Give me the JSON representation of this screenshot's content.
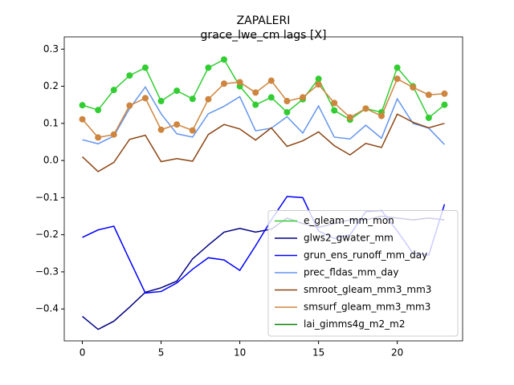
{
  "chart_data": {
    "type": "line",
    "title": "ZAPALERI",
    "subtitle": "grace_lwe_cm lags [X]",
    "x": [
      0,
      1,
      2,
      3,
      4,
      5,
      6,
      7,
      8,
      9,
      10,
      11,
      12,
      13,
      14,
      15,
      16,
      17,
      18,
      19,
      20,
      21,
      22,
      23
    ],
    "xlim": [
      -1.15,
      24.15
    ],
    "xticks": [
      0,
      5,
      10,
      15,
      20
    ],
    "ylim": [
      -0.486,
      0.333
    ],
    "yticks": [
      {
        "value": -0.4,
        "label": "−0.4"
      },
      {
        "value": -0.3,
        "label": "−0.3"
      },
      {
        "value": -0.2,
        "label": "−0.2"
      },
      {
        "value": -0.1,
        "label": "−0.1"
      },
      {
        "value": 0,
        "label": "0.0"
      },
      0.1,
      0.2,
      0.3
    ],
    "legend": "lower right",
    "series": [
      {
        "name": "e_gleam_mm_mon",
        "color": "#32cd32",
        "markers": true,
        "values": [
          0.149,
          0.136,
          0.19,
          0.229,
          0.25,
          0.16,
          0.188,
          0.166,
          0.25,
          0.272,
          0.2,
          0.15,
          0.17,
          0.13,
          0.165,
          0.22,
          0.135,
          0.11,
          0.14,
          0.13,
          0.25,
          0.2,
          0.115,
          0.15
        ]
      },
      {
        "name": "glws2_gwater_mm",
        "color": "#000080",
        "markers": false,
        "values": [
          -0.42,
          -0.455,
          -0.433,
          -0.395,
          -0.355,
          -0.343,
          -0.325,
          -0.265,
          -0.228,
          -0.193,
          -0.183,
          -0.193,
          -0.185,
          -0.155,
          -0.17,
          -0.18,
          -0.17,
          -0.16,
          -0.16,
          -0.15,
          -0.155,
          -0.16,
          -0.155,
          -0.16
        ]
      },
      {
        "name": "grun_ens_runoff_mm_day",
        "color": "#0000ff",
        "markers": false,
        "values": [
          -0.207,
          -0.187,
          -0.177,
          -0.268,
          -0.357,
          -0.353,
          -0.33,
          -0.293,
          -0.262,
          -0.268,
          -0.296,
          -0.23,
          -0.16,
          -0.097,
          -0.1,
          -0.19,
          -0.21,
          -0.2,
          -0.138,
          -0.135,
          -0.19,
          -0.25,
          -0.255,
          -0.118
        ]
      },
      {
        "name": "prec_fldas_mm_day",
        "color": "#6495ed",
        "markers": false,
        "values": [
          0.056,
          0.045,
          0.066,
          0.14,
          0.198,
          0.126,
          0.072,
          0.063,
          0.126,
          0.146,
          0.172,
          0.08,
          0.087,
          0.118,
          0.074,
          0.147,
          0.063,
          0.058,
          0.095,
          0.06,
          0.166,
          0.1,
          0.087,
          0.043
        ]
      },
      {
        "name": "smroot_gleam_mm3_mm3",
        "color": "#8b4513",
        "markers": false,
        "values": [
          0.01,
          -0.03,
          -0.005,
          0.057,
          0.068,
          -0.003,
          0.005,
          -0.002,
          0.07,
          0.097,
          0.085,
          0.055,
          0.088,
          0.038,
          0.053,
          0.077,
          0.04,
          0.015,
          0.046,
          0.035,
          0.125,
          0.103,
          0.088,
          0.1
        ]
      },
      {
        "name": "smsurf_gleam_mm3_mm3",
        "color": "#cd853f",
        "markers": true,
        "values": [
          0.111,
          0.062,
          0.07,
          0.148,
          0.168,
          0.083,
          0.097,
          0.081,
          0.165,
          0.207,
          0.211,
          0.183,
          0.215,
          0.16,
          0.17,
          0.205,
          0.155,
          0.116,
          0.14,
          0.12,
          0.22,
          0.197,
          0.177,
          0.18
        ]
      },
      {
        "name": "lai_gimms4g_m2_m2",
        "color": "#008000",
        "markers": false,
        "values": [
          null,
          null,
          null,
          null,
          null,
          null,
          null,
          null,
          null,
          null,
          null,
          null,
          null,
          null,
          null,
          null,
          null,
          null,
          null,
          null,
          null,
          null,
          null,
          null
        ]
      }
    ]
  }
}
